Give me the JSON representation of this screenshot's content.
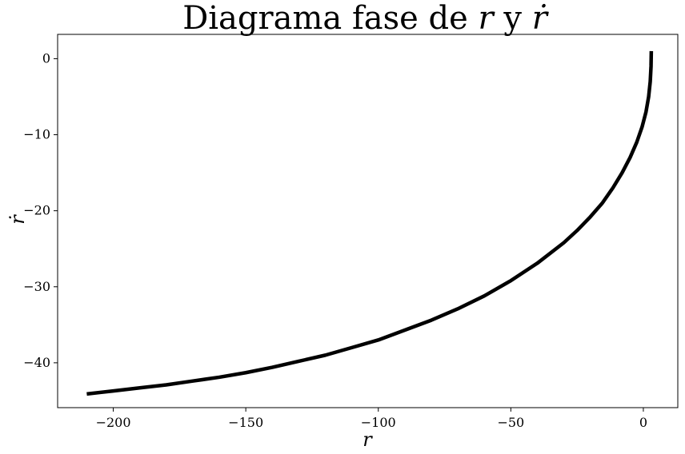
{
  "chart_data": {
    "type": "line",
    "title": "Diagrama fase de r y ṙ",
    "title_parts": {
      "text": "Diagrama fase de ",
      "var1": "r",
      "conj": " y ",
      "var2": "ṙ"
    },
    "xlabel": "r",
    "ylabel": "ṙ",
    "xlim": [
      -221,
      13
    ],
    "ylim": [
      -45.9,
      3.2
    ],
    "xticks": [
      -200,
      -150,
      -100,
      -50,
      0
    ],
    "xtick_labels": [
      "−200",
      "−150",
      "−100",
      "−50",
      "0"
    ],
    "yticks": [
      0,
      -10,
      -20,
      -30,
      -40
    ],
    "ytick_labels": [
      "0",
      "−10",
      "−20",
      "−30",
      "−40"
    ],
    "grid": false,
    "series": [
      {
        "color": "#000000",
        "x": [
          3.0,
          2.9,
          2.6,
          2.0,
          1.0,
          -0.5,
          -2.5,
          -5.0,
          -8.0,
          -11.5,
          -15.5,
          -20.0,
          -25.0,
          -30.0,
          -40.0,
          -50.0,
          -60.0,
          -70.0,
          -80.0,
          -90.0,
          -100.0,
          -110.0,
          -120.0,
          -130.0,
          -140.0,
          -150.0,
          -160.0,
          -170.0,
          -180.0,
          -190.0,
          -200.0,
          -210.0
        ],
        "y": [
          1.0,
          -1.0,
          -3.0,
          -5.0,
          -7.0,
          -9.0,
          -11.0,
          -13.0,
          -15.0,
          -17.0,
          -19.0,
          -20.8,
          -22.6,
          -24.2,
          -26.9,
          -29.2,
          -31.2,
          -32.9,
          -34.4,
          -35.7,
          -37.0,
          -38.0,
          -39.0,
          -39.8,
          -40.6,
          -41.3,
          -41.9,
          -42.4,
          -42.9,
          -43.3,
          -43.7,
          -44.1
        ]
      }
    ]
  }
}
